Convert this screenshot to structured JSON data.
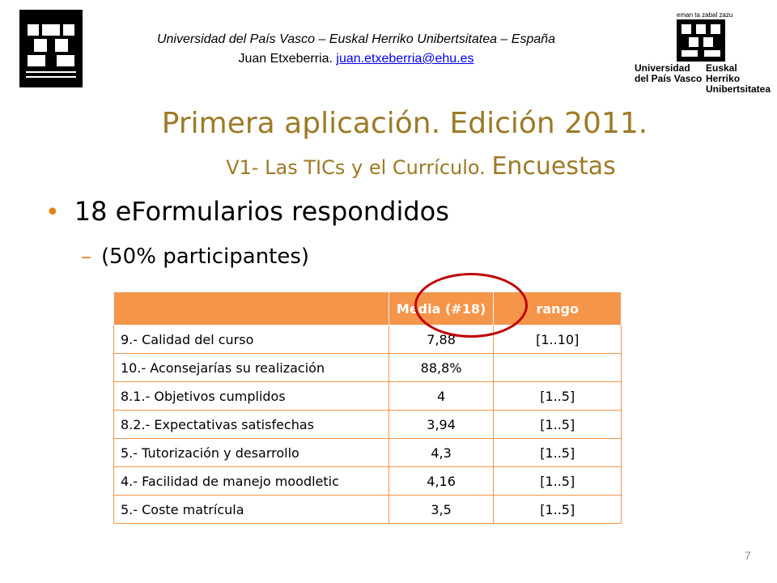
{
  "header": {
    "institution": "Universidad del País Vasco – Euskal Herriko Unibertsitatea – España",
    "author": "Juan Etxeberria",
    "author_sep": ".",
    "email": "juan.etxeberria@ehu.es"
  },
  "logo_right": {
    "tagline": "eman ta zabal zazu",
    "name_es_1": "Universidad",
    "name_es_2": "del País Vasco",
    "name_eu_1": "Euskal Herriko",
    "name_eu_2": "Unibertsitatea"
  },
  "title": {
    "line1": "Primera aplicación. Edición 2011.",
    "line2_a": "V1- Las TICs y el Currículo. ",
    "line2_b": "Encuestas"
  },
  "bullets": {
    "level1": "18 eFormularios respondidos",
    "level2": "(50% participantes)"
  },
  "table": {
    "headers": [
      "",
      "Media (#18)",
      "rango"
    ],
    "rows": [
      [
        "9.- Calidad del curso",
        "7,88",
        "[1..10]"
      ],
      [
        "10.- Aconsejarías su realización",
        "88,8%",
        ""
      ],
      [
        "8.1.- Objetivos cumplidos",
        "4",
        "[1..5]"
      ],
      [
        "8.2.- Expectativas satisfechas",
        "3,94",
        "[1..5]"
      ],
      [
        "5.- Tutorización y desarrollo",
        "4,3",
        "[1..5]"
      ],
      [
        "4.- Facilidad de manejo moodletic",
        "4,16",
        "[1..5]"
      ],
      [
        "5.- Coste matrícula",
        "3,5",
        "[1..5]"
      ]
    ]
  },
  "page_number": "7",
  "colors": {
    "title": "#9c7a26",
    "accent": "#e2841a",
    "table_header": "#f5954a",
    "highlight_circle": "#c00000"
  }
}
